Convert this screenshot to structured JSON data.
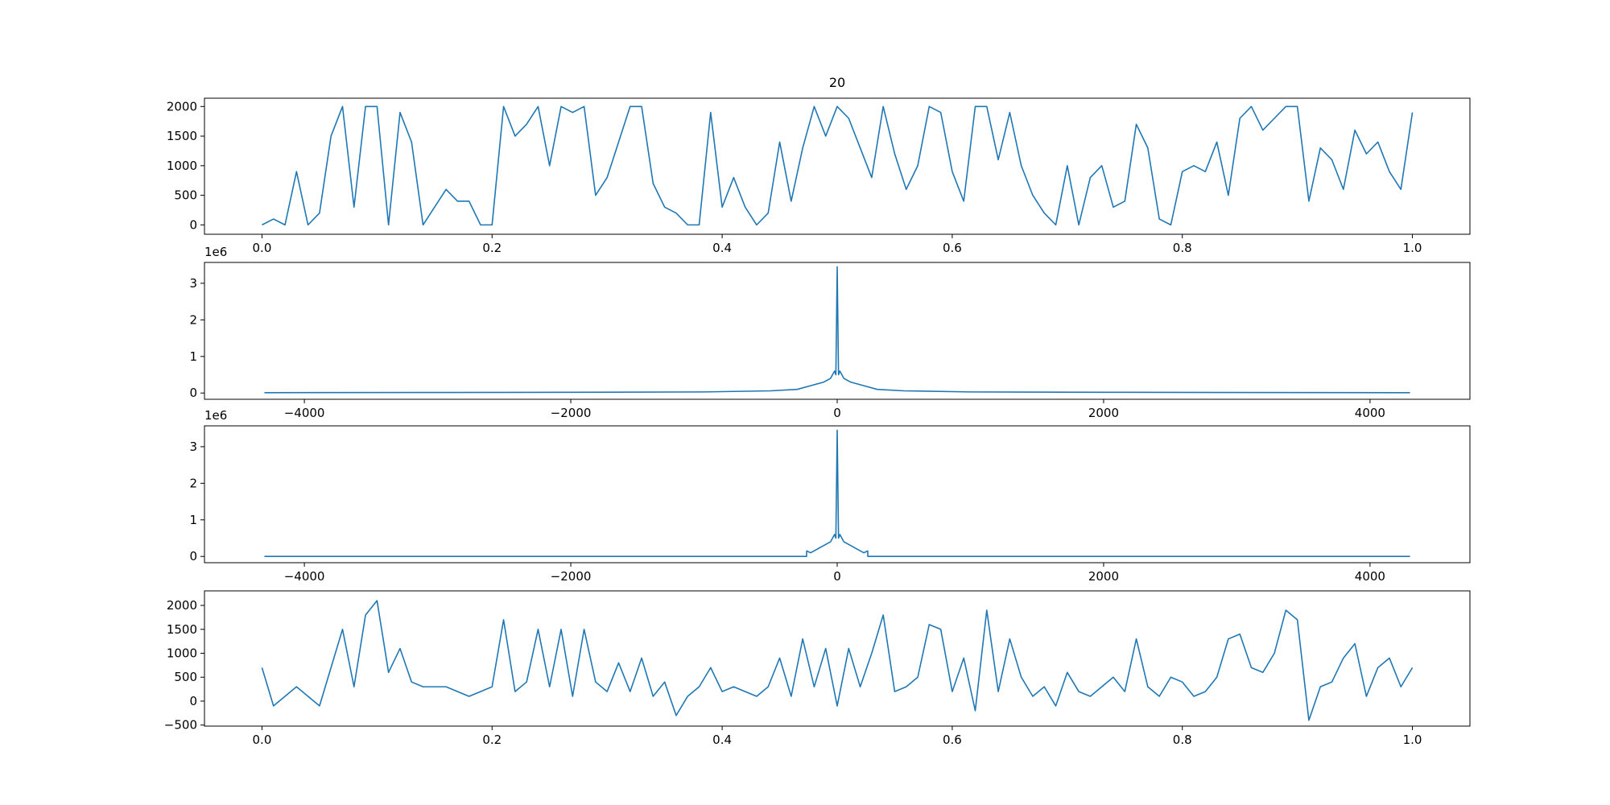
{
  "chart_data": [
    {
      "type": "line",
      "title": "20",
      "color": "#1f77b4",
      "x": [
        0,
        0.01,
        0.02,
        0.03,
        0.04,
        0.05,
        0.06,
        0.07,
        0.08,
        0.09,
        0.1,
        0.11,
        0.12,
        0.13,
        0.14,
        0.15,
        0.16,
        0.17,
        0.18,
        0.19,
        0.2,
        0.21,
        0.22,
        0.23,
        0.24,
        0.25,
        0.26,
        0.27,
        0.28,
        0.29,
        0.3,
        0.31,
        0.32,
        0.33,
        0.34,
        0.35,
        0.36,
        0.37,
        0.38,
        0.39,
        0.4,
        0.41,
        0.42,
        0.43,
        0.44,
        0.45,
        0.46,
        0.47,
        0.48,
        0.49,
        0.5,
        0.51,
        0.52,
        0.53,
        0.54,
        0.55,
        0.56,
        0.57,
        0.58,
        0.59,
        0.6,
        0.61,
        0.62,
        0.63,
        0.64,
        0.65,
        0.66,
        0.67,
        0.68,
        0.69,
        0.7,
        0.71,
        0.72,
        0.73,
        0.74,
        0.75,
        0.76,
        0.77,
        0.78,
        0.79,
        0.8,
        0.81,
        0.82,
        0.83,
        0.84,
        0.85,
        0.86,
        0.87,
        0.88,
        0.89,
        0.9,
        0.91,
        0.92,
        0.93,
        0.94,
        0.95,
        0.96,
        0.97,
        0.98,
        0.99,
        1.0
      ],
      "values": [
        0,
        100,
        0,
        900,
        0,
        200,
        1500,
        2000,
        300,
        2000,
        2000,
        0,
        1900,
        1400,
        0,
        300,
        600,
        400,
        400,
        0,
        0,
        2000,
        1500,
        1700,
        2000,
        1000,
        2000,
        1900,
        2000,
        500,
        800,
        1400,
        2000,
        2000,
        700,
        300,
        200,
        0,
        0,
        1900,
        300,
        800,
        300,
        0,
        200,
        1400,
        400,
        1300,
        2000,
        1500,
        2000,
        1800,
        1300,
        800,
        2000,
        1200,
        600,
        1000,
        2000,
        1900,
        900,
        400,
        2000,
        2000,
        1100,
        1900,
        1000,
        500,
        200,
        0,
        1000,
        0,
        800,
        1000,
        300,
        400,
        1700,
        1300,
        100,
        0,
        900,
        1000,
        900,
        1400,
        500,
        1800,
        2000,
        1600,
        1800,
        2000,
        2000,
        400,
        1300,
        1100,
        600,
        1600,
        1200,
        1400,
        900,
        600,
        1900
      ],
      "xlim": [
        -0.05,
        1.05
      ],
      "ylim": [
        -158,
        2140
      ],
      "xticks": [
        {
          "value": 0,
          "label": "0.0"
        },
        0.2,
        0.4,
        0.6,
        0.8,
        {
          "value": 1,
          "label": "1.0"
        }
      ],
      "yticks": [
        0,
        500,
        1000,
        1500,
        2000
      ]
    },
    {
      "type": "line",
      "color": "#1f77b4",
      "y_offset_label": "1e6",
      "x": [
        -4300,
        -3000,
        -2000,
        -1000,
        -500,
        -300,
        -200,
        -100,
        -50,
        -20,
        -10,
        0,
        10,
        20,
        50,
        100,
        200,
        300,
        500,
        1000,
        2000,
        3000,
        4300
      ],
      "values": [
        10000,
        15000,
        20000,
        30000,
        60000,
        100000,
        200000,
        300000,
        400000,
        600000,
        500000,
        3450000,
        500000,
        600000,
        400000,
        300000,
        200000,
        100000,
        60000,
        30000,
        20000,
        15000,
        10000
      ],
      "xlim": [
        -4750,
        4750
      ],
      "ylim": [
        -171000,
        3570000
      ],
      "xticks": [
        {
          "value": -4000,
          "label": "−4000"
        },
        {
          "value": -2000,
          "label": "−2000"
        },
        0,
        2000,
        4000
      ],
      "yticks": [
        {
          "value": 0,
          "label": "0"
        },
        {
          "value": 1000000,
          "label": "1"
        },
        {
          "value": 2000000,
          "label": "2"
        },
        {
          "value": 3000000,
          "label": "3"
        }
      ]
    },
    {
      "type": "line",
      "color": "#1f77b4",
      "y_offset_label": "1e6",
      "x": [
        -4300,
        -230,
        -229,
        -200,
        -150,
        -100,
        -50,
        -20,
        -10,
        0,
        10,
        20,
        50,
        100,
        150,
        200,
        229,
        230,
        4300
      ],
      "values": [
        0,
        0,
        150000,
        100000,
        200000,
        300000,
        400000,
        600000,
        500000,
        3450000,
        500000,
        600000,
        400000,
        300000,
        200000,
        100000,
        150000,
        0,
        0
      ],
      "xlim": [
        -4750,
        4750
      ],
      "ylim": [
        -171000,
        3570000
      ],
      "xticks": [
        {
          "value": -4000,
          "label": "−4000"
        },
        {
          "value": -2000,
          "label": "−2000"
        },
        0,
        2000,
        4000
      ],
      "yticks": [
        {
          "value": 0,
          "label": "0"
        },
        {
          "value": 1000000,
          "label": "1"
        },
        {
          "value": 2000000,
          "label": "2"
        },
        {
          "value": 3000000,
          "label": "3"
        }
      ]
    },
    {
      "type": "line",
      "color": "#1f77b4",
      "x": [
        0,
        0.01,
        0.02,
        0.03,
        0.04,
        0.05,
        0.06,
        0.07,
        0.08,
        0.09,
        0.1,
        0.11,
        0.12,
        0.13,
        0.14,
        0.15,
        0.16,
        0.17,
        0.18,
        0.19,
        0.2,
        0.21,
        0.22,
        0.23,
        0.24,
        0.25,
        0.26,
        0.27,
        0.28,
        0.29,
        0.3,
        0.31,
        0.32,
        0.33,
        0.34,
        0.35,
        0.36,
        0.37,
        0.38,
        0.39,
        0.4,
        0.41,
        0.42,
        0.43,
        0.44,
        0.45,
        0.46,
        0.47,
        0.48,
        0.49,
        0.5,
        0.51,
        0.52,
        0.53,
        0.54,
        0.55,
        0.56,
        0.57,
        0.58,
        0.59,
        0.6,
        0.61,
        0.62,
        0.63,
        0.64,
        0.65,
        0.66,
        0.67,
        0.68,
        0.69,
        0.7,
        0.71,
        0.72,
        0.73,
        0.74,
        0.75,
        0.76,
        0.77,
        0.78,
        0.79,
        0.8,
        0.81,
        0.82,
        0.83,
        0.84,
        0.85,
        0.86,
        0.87,
        0.88,
        0.89,
        0.9,
        0.91,
        0.92,
        0.93,
        0.94,
        0.95,
        0.96,
        0.97,
        0.98,
        0.99,
        1.0
      ],
      "values": [
        700,
        -100,
        100,
        300,
        100,
        -100,
        700,
        1500,
        300,
        1800,
        2100,
        600,
        1100,
        400,
        300,
        300,
        300,
        200,
        100,
        200,
        300,
        1700,
        200,
        400,
        1500,
        300,
        1500,
        100,
        1500,
        400,
        200,
        800,
        200,
        900,
        100,
        400,
        -300,
        100,
        300,
        700,
        200,
        300,
        200,
        100,
        300,
        900,
        100,
        1300,
        300,
        1100,
        -100,
        1100,
        300,
        1000,
        1800,
        200,
        300,
        500,
        1600,
        1500,
        200,
        900,
        -200,
        1900,
        200,
        1300,
        500,
        100,
        300,
        -100,
        600,
        200,
        100,
        300,
        500,
        200,
        1300,
        300,
        100,
        500,
        400,
        100,
        200,
        500,
        1300,
        1400,
        700,
        600,
        1000,
        1900,
        1700,
        -400,
        300,
        400,
        900,
        1200,
        100,
        700,
        900,
        300,
        700
      ],
      "xlim": [
        -0.05,
        1.05
      ],
      "ylim": [
        -522,
        2304
      ],
      "xticks": [
        {
          "value": 0,
          "label": "0.0"
        },
        0.2,
        0.4,
        0.6,
        0.8,
        {
          "value": 1,
          "label": "1.0"
        }
      ],
      "yticks": [
        {
          "value": -500,
          "label": "−500"
        },
        0,
        500,
        1000,
        1500,
        2000
      ]
    }
  ]
}
